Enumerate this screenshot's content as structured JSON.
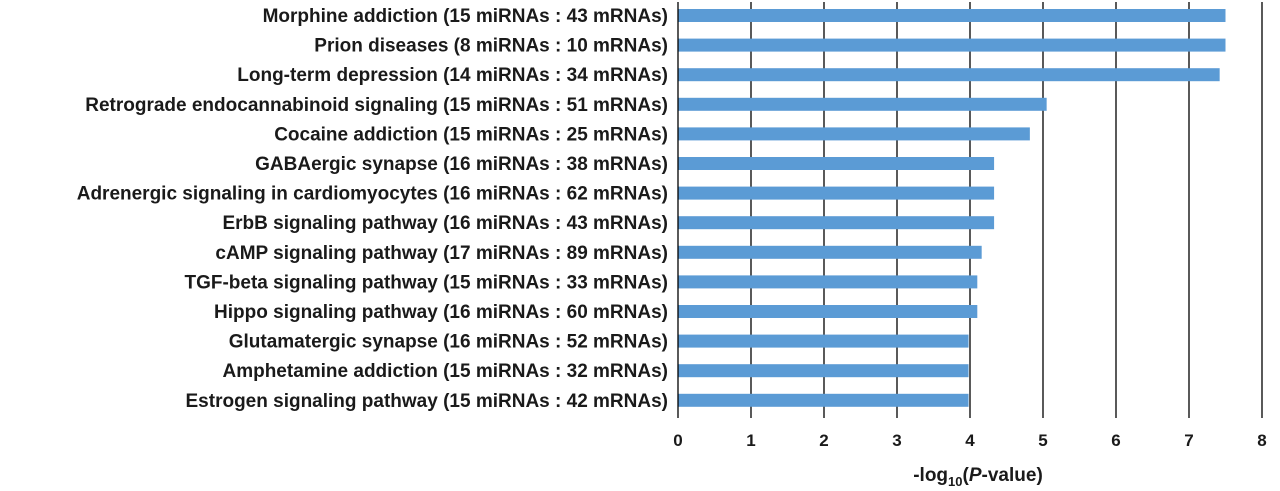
{
  "chart_data": {
    "type": "bar",
    "orientation": "horizontal",
    "categories": [
      "Morphine addiction (15 miRNAs : 43 mRNAs)",
      "Prion diseases (8 miRNAs : 10 mRNAs)",
      "Long-term depression (14 miRNAs : 34 mRNAs)",
      "Retrograde endocannabinoid signaling (15 miRNAs : 51 mRNAs)",
      "Cocaine addiction (15 miRNAs : 25 mRNAs)",
      "GABAergic synapse (16 miRNAs : 38 mRNAs)",
      "Adrenergic signaling in cardiomyocytes (16 miRNAs : 62 mRNAs)",
      "ErbB signaling pathway (16 miRNAs : 43 mRNAs)",
      "cAMP signaling pathway (17 miRNAs : 89 mRNAs)",
      "TGF-beta signaling pathway (15 miRNAs : 33 mRNAs)",
      "Hippo signaling pathway (16 miRNAs : 60 mRNAs)",
      "Glutamatergic synapse (16 miRNAs : 52 mRNAs)",
      "Amphetamine addiction (15 miRNAs : 32 mRNAs)",
      "Estrogen signaling pathway (15 miRNAs : 42 mRNAs)"
    ],
    "values": [
      7.5,
      7.5,
      7.42,
      5.05,
      4.82,
      4.33,
      4.33,
      4.33,
      4.16,
      4.1,
      4.1,
      3.98,
      3.98,
      3.98
    ],
    "xlabel_prefix": "-log",
    "xlabel_subscript": "10",
    "xlabel_open": "(",
    "xlabel_italic": "P",
    "xlabel_suffix": "-value)",
    "xlim": [
      0,
      8
    ],
    "xticks": [
      "0",
      "1",
      "2",
      "3",
      "4",
      "5",
      "6",
      "7",
      "8"
    ],
    "grid": "vertical major gridlines",
    "legend": "none",
    "bar_color": "#5b9bd5"
  }
}
